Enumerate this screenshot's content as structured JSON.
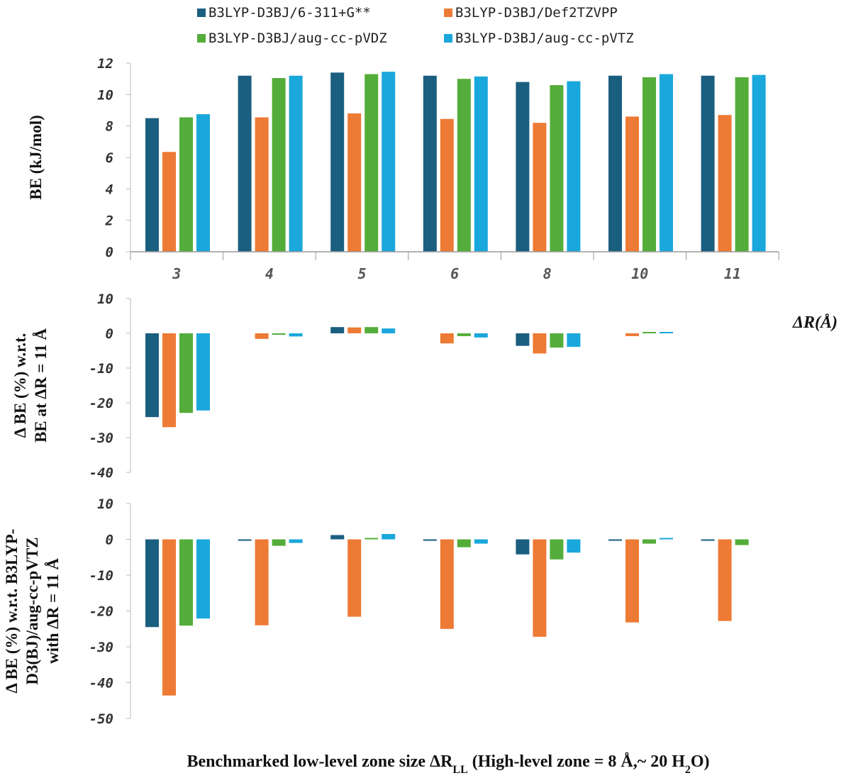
{
  "legend": [
    {
      "label": "B3LYP-D3BJ/6-311+G**",
      "color": "#1b5f80"
    },
    {
      "label": "B3LYP-D3BJ/Def2TZVPP",
      "color": "#ed7a35"
    },
    {
      "label": "B3LYP-D3BJ/aug-cc-pVDZ",
      "color": "#54ad3a"
    },
    {
      "label": "B3LYP-D3BJ/aug-cc-pVTZ",
      "color": "#1aa7dc"
    }
  ],
  "x_axis_label": "ΔR(Å)",
  "bottom_label": {
    "part1": "Benchmarked low-level zone size ΔR",
    "sub": "LL",
    "part2": " (High-level zone = 8 Å,~ 20 H",
    "sub2": "2",
    "part3": "O)"
  },
  "chart_data": [
    {
      "type": "bar",
      "title": "",
      "ylabel": "BE (kJ/mol)",
      "categories": [
        "3",
        "4",
        "5",
        "6",
        "8",
        "10",
        "11"
      ],
      "ylim": [
        0,
        12
      ],
      "yticks": [
        0,
        2,
        4,
        6,
        8,
        10,
        12
      ],
      "series": [
        {
          "name": "B3LYP-D3BJ/6-311+G**",
          "values": [
            8.5,
            11.2,
            11.4,
            11.2,
            10.8,
            11.2,
            11.2
          ]
        },
        {
          "name": "B3LYP-D3BJ/Def2TZVPP",
          "values": [
            6.35,
            8.55,
            8.8,
            8.45,
            8.2,
            8.6,
            8.7
          ]
        },
        {
          "name": "B3LYP-D3BJ/aug-cc-pVDZ",
          "values": [
            8.55,
            11.05,
            11.3,
            11.0,
            10.6,
            11.1,
            11.1
          ]
        },
        {
          "name": "B3LYP-D3BJ/aug-cc-pVTZ",
          "values": [
            8.75,
            11.2,
            11.45,
            11.15,
            10.85,
            11.3,
            11.25
          ]
        }
      ]
    },
    {
      "type": "bar",
      "title": "",
      "ylabel_lines": [
        "Δ BE (%) w.r.t.",
        "BE at ΔR = 11 Å"
      ],
      "categories": [
        "3",
        "4",
        "5",
        "6",
        "8",
        "10",
        "11"
      ],
      "ylim": [
        -40,
        10
      ],
      "yticks": [
        -40,
        -30,
        -20,
        -10,
        0,
        10
      ],
      "series": [
        {
          "name": "B3LYP-D3BJ/6-311+G**",
          "values": [
            -24.1,
            0.0,
            1.8,
            0.0,
            -3.6,
            0.0,
            0.0
          ]
        },
        {
          "name": "B3LYP-D3BJ/Def2TZVPP",
          "values": [
            -27.0,
            -1.6,
            1.7,
            -2.9,
            -5.8,
            -0.8,
            0.0
          ]
        },
        {
          "name": "B3LYP-D3BJ/aug-cc-pVDZ",
          "values": [
            -22.9,
            -0.4,
            1.8,
            -0.8,
            -4.1,
            0.3,
            0.0
          ]
        },
        {
          "name": "B3LYP-D3BJ/aug-cc-pVTZ",
          "values": [
            -22.2,
            -0.9,
            1.4,
            -1.2,
            -3.9,
            0.2,
            0.0
          ]
        }
      ]
    },
    {
      "type": "bar",
      "title": "",
      "ylabel_lines": [
        "Δ BE (%) w.r.t. B3LYP-",
        "D3(BJ)/aug-cc-pVTZ",
        "with ΔR = 11 Å"
      ],
      "categories": [
        "3",
        "4",
        "5",
        "6",
        "8",
        "10",
        "11"
      ],
      "ylim": [
        -50,
        10
      ],
      "yticks": [
        -50,
        -40,
        -30,
        -20,
        -10,
        0,
        10
      ],
      "series": [
        {
          "name": "B3LYP-D3BJ/6-311+G**",
          "values": [
            -24.5,
            -0.4,
            1.2,
            -0.4,
            -4.2,
            -0.4,
            -0.4
          ]
        },
        {
          "name": "B3LYP-D3BJ/Def2TZVPP",
          "values": [
            -43.6,
            -24.0,
            -21.6,
            -25.0,
            -27.2,
            -23.2,
            -22.8
          ]
        },
        {
          "name": "B3LYP-D3BJ/aug-cc-pVDZ",
          "values": [
            -24.1,
            -1.8,
            0.3,
            -2.2,
            -5.6,
            -1.2,
            -1.6
          ]
        },
        {
          "name": "B3LYP-D3BJ/aug-cc-pVTZ",
          "values": [
            -22.1,
            -1.0,
            1.5,
            -1.2,
            -3.7,
            0.4,
            0.0
          ]
        }
      ]
    }
  ]
}
